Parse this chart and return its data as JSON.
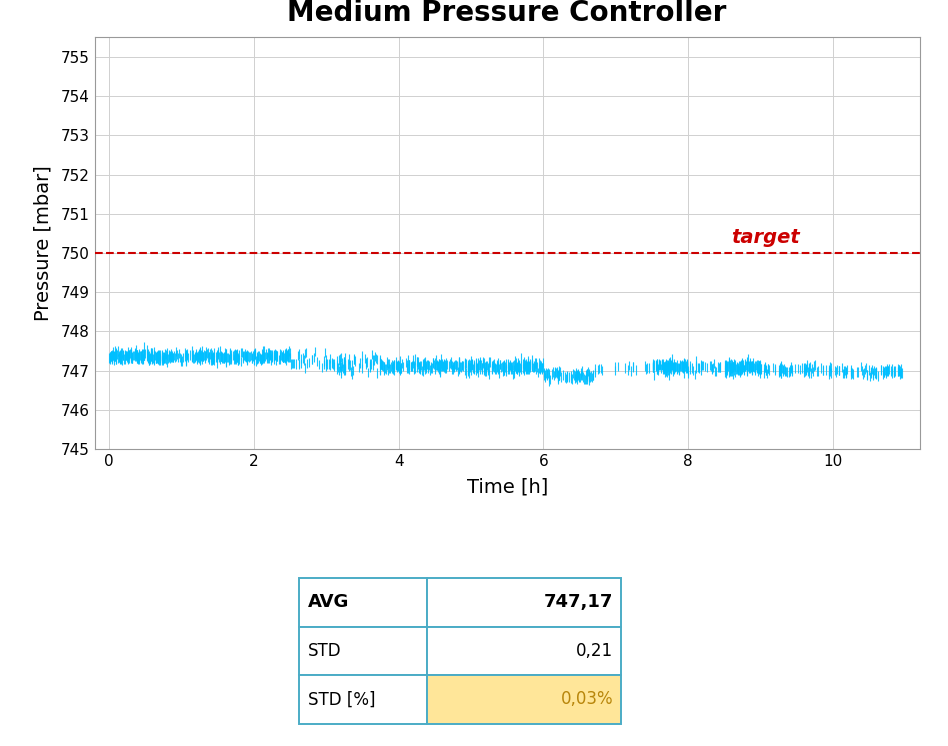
{
  "title": "Medium Pressure Controller",
  "xlabel": "Time [h]",
  "ylabel": "Pressure [mbar]",
  "target_pressure": 750,
  "avg_label": "747,17",
  "std_label": "0,21",
  "std_pct": "0,03%",
  "xlim": [
    -0.2,
    11.2
  ],
  "ylim": [
    745,
    755.5
  ],
  "yticks": [
    745,
    746,
    747,
    748,
    749,
    750,
    751,
    752,
    753,
    754,
    755
  ],
  "xticks": [
    0,
    2,
    4,
    6,
    8,
    10
  ],
  "data_color": "#00BFFF",
  "target_color": "#CC0000",
  "grid_color": "#D0D0D0",
  "table_border_color": "#4BACC6",
  "table_highlight_color": "#FFE699",
  "background_color": "#FFFFFF",
  "seed": 42
}
